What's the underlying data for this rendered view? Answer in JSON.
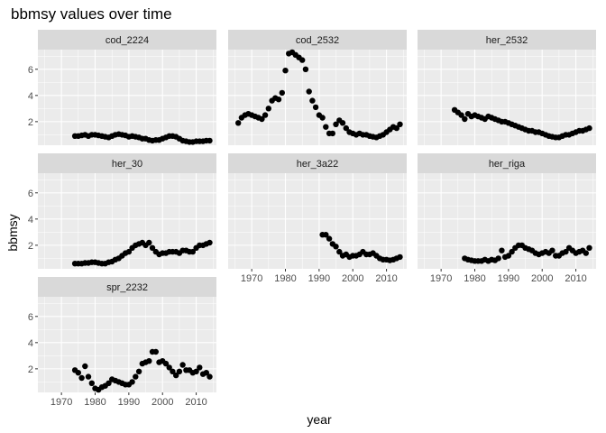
{
  "chart_data": {
    "type": "scatter",
    "title": "bbmsy values over time",
    "xlabel": "year",
    "ylabel": "bbmsy",
    "xlim": [
      1963,
      2016
    ],
    "ylim": [
      0.2,
      7.5
    ],
    "xticks": [
      1970,
      1980,
      1990,
      2000,
      2010
    ],
    "yticks": [
      2,
      4,
      6
    ],
    "grid": true,
    "colors": {
      "panel_bg": "#EBEBEB",
      "grid_major": "#FFFFFF",
      "strip_bg": "#D9D9D9",
      "point": "#000000"
    },
    "panels": [
      {
        "name": "cod_2224",
        "x": [
          1974,
          1975,
          1976,
          1977,
          1978,
          1979,
          1980,
          1981,
          1982,
          1983,
          1984,
          1985,
          1986,
          1987,
          1988,
          1989,
          1990,
          1991,
          1992,
          1993,
          1994,
          1995,
          1996,
          1997,
          1998,
          1999,
          2000,
          2001,
          2002,
          2003,
          2004,
          2005,
          2006,
          2007,
          2008,
          2009,
          2010,
          2011,
          2012,
          2013,
          2014
        ],
        "y": [
          0.9,
          0.9,
          0.95,
          1.0,
          0.9,
          1.0,
          1.0,
          0.95,
          0.9,
          0.85,
          0.8,
          0.9,
          1.0,
          1.05,
          1.0,
          0.95,
          0.85,
          0.9,
          0.85,
          0.8,
          0.7,
          0.7,
          0.6,
          0.55,
          0.6,
          0.6,
          0.7,
          0.8,
          0.9,
          0.9,
          0.85,
          0.7,
          0.55,
          0.5,
          0.45,
          0.45,
          0.5,
          0.5,
          0.5,
          0.55,
          0.55
        ]
      },
      {
        "name": "cod_2532",
        "x": [
          1966,
          1967,
          1968,
          1969,
          1970,
          1971,
          1972,
          1973,
          1974,
          1975,
          1976,
          1977,
          1978,
          1979,
          1980,
          1981,
          1982,
          1983,
          1984,
          1985,
          1986,
          1987,
          1988,
          1989,
          1990,
          1991,
          1992,
          1993,
          1994,
          1995,
          1996,
          1997,
          1998,
          1999,
          2000,
          2001,
          2002,
          2003,
          2004,
          2005,
          2006,
          2007,
          2008,
          2009,
          2010,
          2011,
          2012,
          2013,
          2014
        ],
        "y": [
          1.9,
          2.3,
          2.5,
          2.6,
          2.5,
          2.4,
          2.3,
          2.2,
          2.5,
          3.0,
          3.6,
          3.8,
          3.7,
          4.2,
          5.9,
          7.2,
          7.3,
          7.1,
          6.9,
          6.7,
          6.0,
          4.3,
          3.6,
          3.1,
          2.5,
          2.3,
          1.6,
          1.1,
          1.1,
          1.8,
          2.1,
          1.9,
          1.5,
          1.2,
          1.1,
          1.0,
          1.1,
          1.0,
          1.0,
          0.9,
          0.85,
          0.8,
          0.9,
          1.0,
          1.2,
          1.4,
          1.6,
          1.5,
          1.8
        ]
      },
      {
        "name": "her_2532",
        "x": [
          1974,
          1975,
          1976,
          1977,
          1978,
          1979,
          1980,
          1981,
          1982,
          1983,
          1984,
          1985,
          1986,
          1987,
          1988,
          1989,
          1990,
          1991,
          1992,
          1993,
          1994,
          1995,
          1996,
          1997,
          1998,
          1999,
          2000,
          2001,
          2002,
          2003,
          2004,
          2005,
          2006,
          2007,
          2008,
          2009,
          2010,
          2011,
          2012,
          2013,
          2014
        ],
        "y": [
          2.9,
          2.7,
          2.5,
          2.2,
          2.6,
          2.4,
          2.5,
          2.4,
          2.3,
          2.2,
          2.4,
          2.3,
          2.2,
          2.1,
          2.0,
          2.0,
          1.9,
          1.8,
          1.7,
          1.6,
          1.5,
          1.4,
          1.3,
          1.3,
          1.2,
          1.2,
          1.1,
          1.0,
          0.9,
          0.85,
          0.8,
          0.8,
          0.9,
          1.0,
          1.0,
          1.1,
          1.2,
          1.3,
          1.3,
          1.4,
          1.5
        ]
      },
      {
        "name": "her_30",
        "x": [
          1974,
          1975,
          1976,
          1977,
          1978,
          1979,
          1980,
          1981,
          1982,
          1983,
          1984,
          1985,
          1986,
          1987,
          1988,
          1989,
          1990,
          1991,
          1992,
          1993,
          1994,
          1995,
          1996,
          1997,
          1998,
          1999,
          2000,
          2001,
          2002,
          2003,
          2004,
          2005,
          2006,
          2007,
          2008,
          2009,
          2010,
          2011,
          2012,
          2013,
          2014
        ],
        "y": [
          0.6,
          0.6,
          0.6,
          0.65,
          0.65,
          0.7,
          0.7,
          0.65,
          0.6,
          0.6,
          0.7,
          0.75,
          0.9,
          1.0,
          1.2,
          1.4,
          1.5,
          1.8,
          2.0,
          2.1,
          2.2,
          2.0,
          2.2,
          1.8,
          1.5,
          1.3,
          1.4,
          1.4,
          1.5,
          1.5,
          1.5,
          1.4,
          1.6,
          1.6,
          1.5,
          1.5,
          1.8,
          2.0,
          2.0,
          2.1,
          2.2
        ]
      },
      {
        "name": "her_3a22",
        "x": [
          1991,
          1992,
          1993,
          1994,
          1995,
          1996,
          1997,
          1998,
          1999,
          2000,
          2001,
          2002,
          2003,
          2004,
          2005,
          2006,
          2007,
          2008,
          2009,
          2010,
          2011,
          2012,
          2013,
          2014
        ],
        "y": [
          2.8,
          2.8,
          2.5,
          2.1,
          1.9,
          1.5,
          1.2,
          1.3,
          1.1,
          1.2,
          1.2,
          1.3,
          1.5,
          1.3,
          1.3,
          1.4,
          1.2,
          1.0,
          0.9,
          0.9,
          0.85,
          0.9,
          1.0,
          1.1
        ]
      },
      {
        "name": "her_riga",
        "x": [
          1977,
          1978,
          1979,
          1980,
          1981,
          1982,
          1983,
          1984,
          1985,
          1986,
          1987,
          1988,
          1989,
          1990,
          1991,
          1992,
          1993,
          1994,
          1995,
          1996,
          1997,
          1998,
          1999,
          2000,
          2001,
          2002,
          2003,
          2004,
          2005,
          2006,
          2007,
          2008,
          2009,
          2010,
          2011,
          2012,
          2013,
          2014
        ],
        "y": [
          1.0,
          0.9,
          0.85,
          0.8,
          0.8,
          0.8,
          0.9,
          0.8,
          0.9,
          0.85,
          1.0,
          1.6,
          1.1,
          1.2,
          1.5,
          1.8,
          2.0,
          2.0,
          1.8,
          1.7,
          1.6,
          1.4,
          1.3,
          1.4,
          1.5,
          1.4,
          1.6,
          1.2,
          1.2,
          1.4,
          1.5,
          1.8,
          1.6,
          1.4,
          1.5,
          1.6,
          1.4,
          1.8
        ]
      },
      {
        "name": "spr_2232",
        "x": [
          1974,
          1975,
          1976,
          1977,
          1978,
          1979,
          1980,
          1981,
          1982,
          1983,
          1984,
          1985,
          1986,
          1987,
          1988,
          1989,
          1990,
          1991,
          1992,
          1993,
          1994,
          1995,
          1996,
          1997,
          1998,
          1999,
          2000,
          2001,
          2002,
          2003,
          2004,
          2005,
          2006,
          2007,
          2008,
          2009,
          2010,
          2011,
          2012,
          2013,
          2014
        ],
        "y": [
          1.9,
          1.7,
          1.3,
          2.2,
          1.4,
          0.9,
          0.5,
          0.4,
          0.6,
          0.7,
          0.9,
          1.2,
          1.1,
          1.0,
          0.9,
          0.8,
          0.8,
          1.0,
          1.4,
          1.8,
          2.4,
          2.5,
          2.6,
          3.3,
          3.3,
          2.5,
          2.6,
          2.4,
          2.1,
          1.8,
          1.5,
          1.8,
          2.3,
          1.9,
          1.9,
          1.7,
          1.8,
          2.1,
          1.6,
          1.7,
          1.4
        ]
      }
    ]
  }
}
